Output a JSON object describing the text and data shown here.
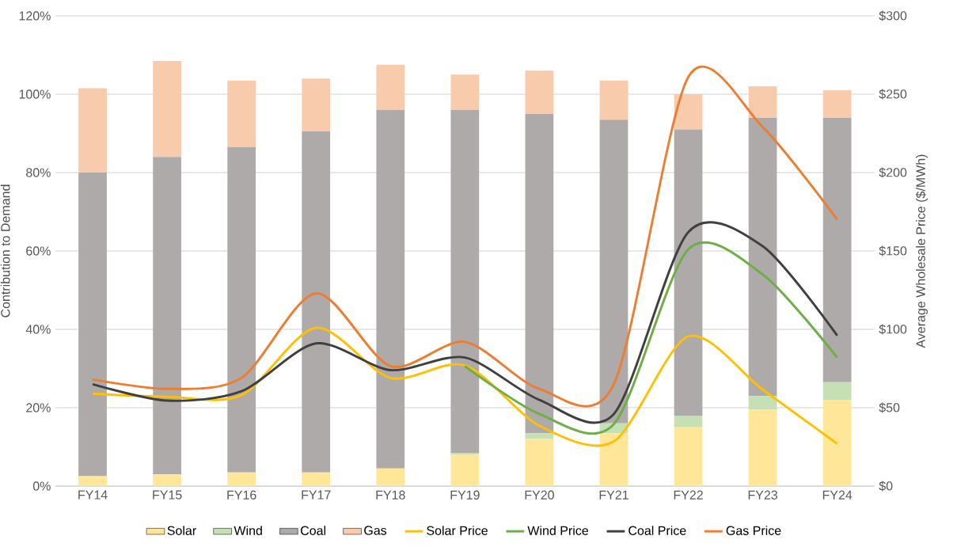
{
  "chart_data": {
    "type": "bar",
    "stacked": true,
    "categories": [
      "FY14",
      "FY15",
      "FY16",
      "FY17",
      "FY18",
      "FY19",
      "FY20",
      "FY21",
      "FY22",
      "FY23",
      "FY24"
    ],
    "series": [
      {
        "name": "Solar",
        "color": "#ffe699",
        "values": [
          2.5,
          3,
          3.5,
          3.5,
          4.5,
          8,
          12,
          13.5,
          15,
          19.5,
          22
        ]
      },
      {
        "name": "Wind",
        "color": "#c5e0b4",
        "values": [
          0,
          0,
          0,
          0,
          0,
          0.5,
          1.5,
          2.5,
          3,
          3.5,
          4.5
        ]
      },
      {
        "name": "Coal",
        "color": "#aeaaaa",
        "values": [
          77.5,
          81,
          83,
          87,
          91.5,
          87.5,
          81.5,
          77.5,
          73,
          71,
          67.5
        ]
      },
      {
        "name": "Gas",
        "color": "#f8cbad",
        "values": [
          21.5,
          24.5,
          17,
          13.5,
          11.5,
          9,
          11,
          10,
          9,
          8,
          7
        ]
      },
      {
        "name": "Solar Price",
        "type": "line",
        "axis": "y2",
        "color": "#ffc000",
        "values": [
          59,
          57,
          58,
          101,
          69,
          77,
          38.5,
          28.5,
          95.5,
          61.5,
          27
        ]
      },
      {
        "name": "Wind Price",
        "type": "line",
        "axis": "y2",
        "color": "#70ad47",
        "values": [
          null,
          null,
          null,
          null,
          null,
          76.5,
          46,
          39.5,
          151,
          135,
          82
        ]
      },
      {
        "name": "Coal Price",
        "type": "line",
        "axis": "y2",
        "color": "#404040",
        "values": [
          65,
          54.5,
          60.5,
          91,
          74,
          82,
          55,
          46,
          162,
          153,
          96
        ]
      },
      {
        "name": "Gas Price",
        "type": "line",
        "axis": "y2",
        "color": "#ed7d31",
        "values": [
          68,
          62,
          69,
          123,
          76.5,
          92,
          62,
          65,
          261,
          229,
          170
        ]
      }
    ],
    "ylabel": "Contribution to Demand",
    "y2label": "Average Wholesale Price ($/MWh)",
    "ylim": [
      0,
      120
    ],
    "yticks": [
      {
        "value": 0,
        "label": "0%"
      },
      {
        "value": 20,
        "label": "20%"
      },
      {
        "value": 40,
        "label": "40%"
      },
      {
        "value": 60,
        "label": "60%"
      },
      {
        "value": 80,
        "label": "80%"
      },
      {
        "value": 100,
        "label": "100%"
      },
      {
        "value": 120,
        "label": "120%"
      }
    ],
    "y2lim": [
      0,
      300
    ],
    "y2ticks": [
      {
        "value": 0,
        "label": "$0"
      },
      {
        "value": 50,
        "label": "$50"
      },
      {
        "value": 100,
        "label": "$100"
      },
      {
        "value": 150,
        "label": "$150"
      },
      {
        "value": 200,
        "label": "$200"
      },
      {
        "value": 250,
        "label": "$250"
      },
      {
        "value": 300,
        "label": "$300"
      }
    ],
    "grid": "y",
    "legend": "bottom",
    "marker": "none",
    "line_style": "solid"
  }
}
